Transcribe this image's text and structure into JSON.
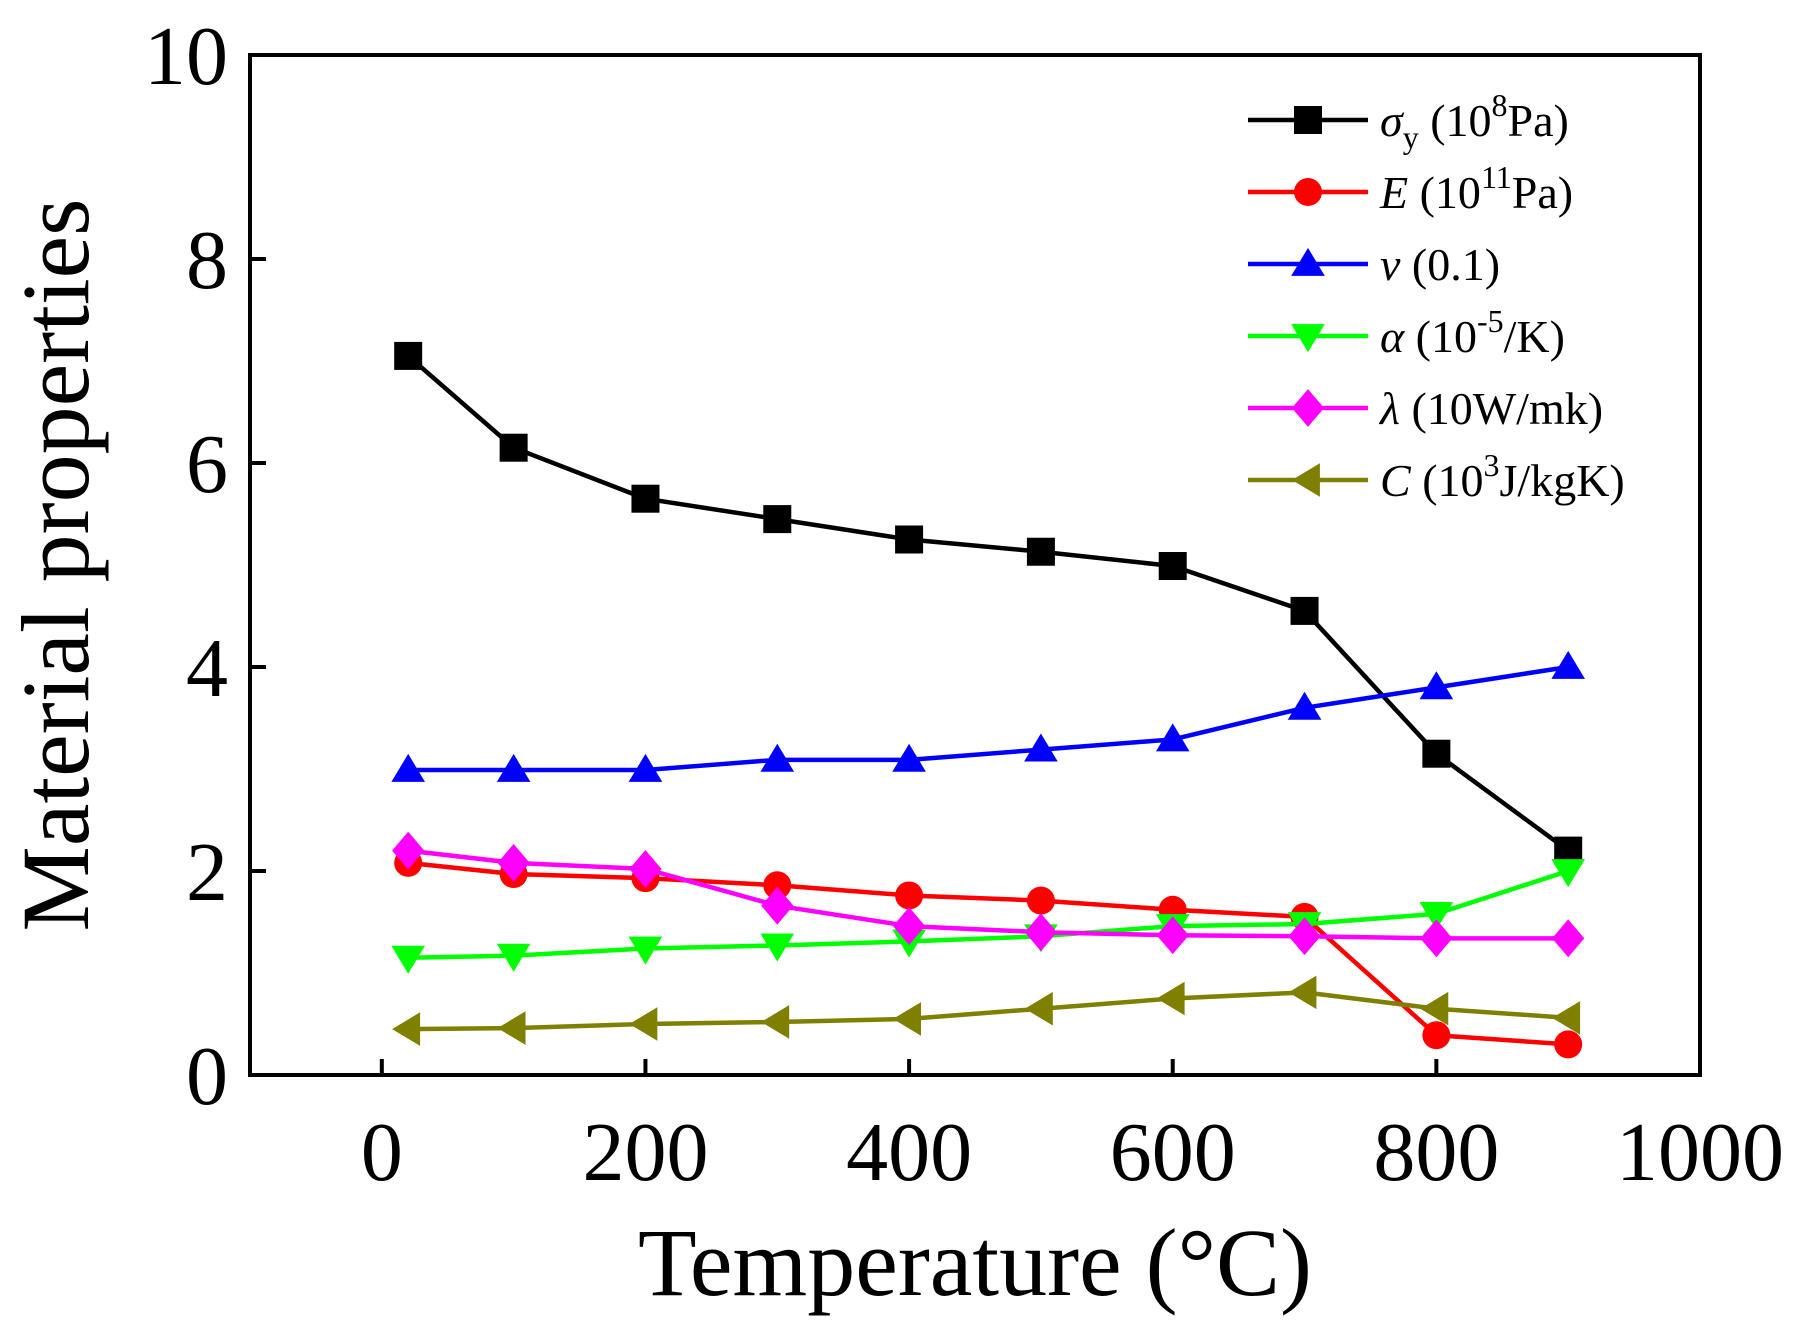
{
  "chart_data": {
    "type": "line",
    "title": "",
    "xlabel": "Temperature (°C)",
    "ylabel": "Material properties",
    "xlim": [
      -100,
      1000
    ],
    "ylim": [
      0,
      10
    ],
    "xticks": [
      0,
      200,
      400,
      600,
      800,
      1000
    ],
    "yticks": [
      0,
      2,
      4,
      6,
      8,
      10
    ],
    "grid": false,
    "legend_position": "top-right",
    "x": [
      20,
      100,
      200,
      300,
      400,
      500,
      600,
      700,
      800,
      900
    ],
    "series": [
      {
        "symbol": "σ",
        "sub": "y",
        "unit_pre": "(10",
        "unit_sup": "8",
        "unit_post": "Pa)",
        "color": "#000000",
        "marker": "square",
        "values": [
          7.05,
          6.15,
          5.65,
          5.45,
          5.25,
          5.13,
          4.99,
          4.55,
          3.15,
          2.2
        ]
      },
      {
        "symbol": "E",
        "sub": "",
        "unit_pre": "(10",
        "unit_sup": "11",
        "unit_post": "Pa)",
        "color": "#ff0000",
        "marker": "circle",
        "values": [
          2.08,
          1.97,
          1.93,
          1.86,
          1.76,
          1.71,
          1.62,
          1.55,
          0.39,
          0.3
        ]
      },
      {
        "symbol": "v",
        "sub": "",
        "unit_pre": "(0.1)",
        "unit_sup": "",
        "unit_post": "",
        "color": "#0000ff",
        "marker": "triangle-up",
        "values": [
          2.99,
          2.99,
          2.99,
          3.09,
          3.09,
          3.19,
          3.29,
          3.6,
          3.8,
          4.0
        ]
      },
      {
        "symbol": "α",
        "sub": "",
        "unit_pre": "(10",
        "unit_sup": "-5",
        "unit_post": "/K)",
        "color": "#00ff00",
        "marker": "triangle-down",
        "values": [
          1.15,
          1.17,
          1.24,
          1.27,
          1.31,
          1.36,
          1.46,
          1.48,
          1.58,
          2.0
        ]
      },
      {
        "symbol": "λ",
        "sub": "",
        "unit_pre": "(10W/mk)",
        "unit_sup": "",
        "unit_post": "",
        "color": "#ff00ff",
        "marker": "diamond",
        "values": [
          2.2,
          2.08,
          2.02,
          1.66,
          1.46,
          1.4,
          1.37,
          1.36,
          1.34,
          1.34
        ]
      },
      {
        "symbol": "C",
        "sub": "",
        "unit_pre": "(10",
        "unit_sup": "3",
        "unit_post": "J/kgK)",
        "color": "#808000",
        "marker": "triangle-left",
        "values": [
          0.45,
          0.46,
          0.5,
          0.52,
          0.55,
          0.65,
          0.75,
          0.81,
          0.65,
          0.56
        ]
      }
    ]
  }
}
